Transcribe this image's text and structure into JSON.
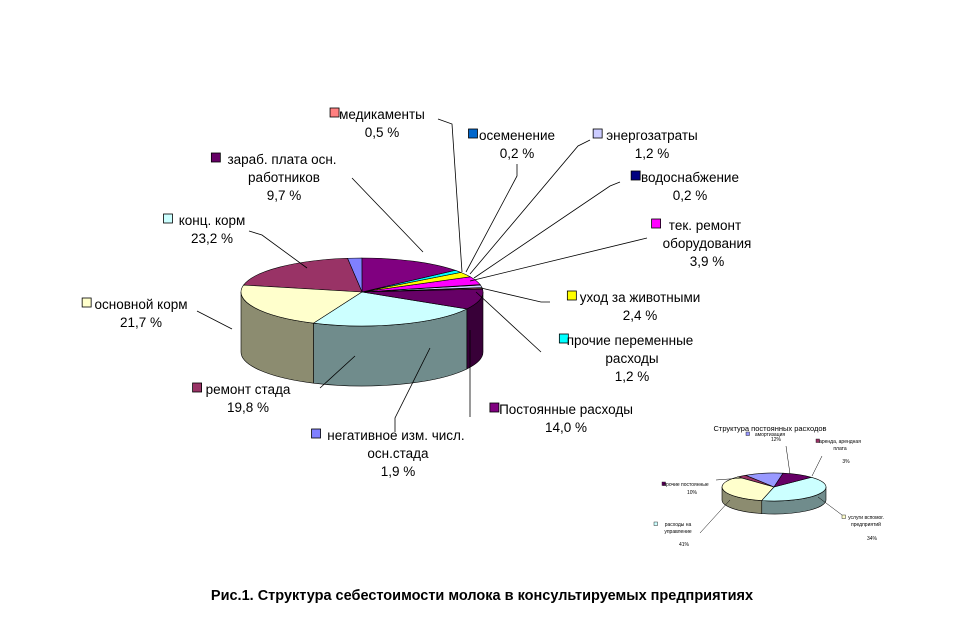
{
  "chart_data": [
    {
      "type": "pie",
      "series": [
        {
          "name": "медикаменты",
          "value": 0.5,
          "label": "0,5 %",
          "color": "#ff8080"
        },
        {
          "name": "осеменение",
          "value": 0.2,
          "label": "0,2 %",
          "color": "#0066cc"
        },
        {
          "name": "энергозатраты",
          "value": 1.2,
          "label": "1,2 %",
          "color": "#ccccff"
        },
        {
          "name": "водоснабжение",
          "value": 0.2,
          "label": "0,2 %",
          "color": "#000080"
        },
        {
          "name": "тек. ремонт оборудования",
          "label_lines": [
            "тек. ремонт",
            "оборудования"
          ],
          "value": 3.9,
          "label": "3,9 %",
          "color": "#ff00ff"
        },
        {
          "name": "уход за животными",
          "value": 2.4,
          "label": "2,4 %",
          "color": "#ffff00"
        },
        {
          "name": "прочие переменные расходы",
          "label_lines": [
            "прочие переменные",
            "расходы"
          ],
          "value": 1.2,
          "label": "1,2 %",
          "color": "#00ffff"
        },
        {
          "name": "Постоянные расходы",
          "value": 14.0,
          "label": "14,0 %",
          "color": "#800080"
        },
        {
          "name": "негативное изм. числ. осн.стада",
          "label_lines": [
            "негативное изм. числ.",
            "осн.стада"
          ],
          "value": 1.9,
          "label": "1,9 %",
          "color": "#8080ff"
        },
        {
          "name": "ремонт стада",
          "value": 19.8,
          "label": "19,8 %",
          "color": "#993366"
        },
        {
          "name": "основной корм",
          "value": 21.7,
          "label": "21,7 %",
          "color": "#ffffcc"
        },
        {
          "name": "конц. корм",
          "value": 23.2,
          "label": "23,2 %",
          "color": "#ccffff"
        },
        {
          "name": "зараб. плата осн. работников",
          "label_lines": [
            "зараб. плата осн.",
            "работников"
          ],
          "value": 9.7,
          "label": "9,7 %",
          "color": "#660066"
        }
      ]
    },
    {
      "type": "pie",
      "title": "Структура постоянных расходов",
      "series": [
        {
          "name": "амортизация",
          "value": 12,
          "label": "12%",
          "color": "#9999ff"
        },
        {
          "name": "аренда, арендная плата",
          "value": 3,
          "label": "3%",
          "color": "#993366"
        },
        {
          "name": "услуги вспомог. предприятий",
          "value": 34,
          "label": "34%",
          "color": "#ffffcc"
        },
        {
          "name": "расходы на управление",
          "value": 41,
          "label": "41%",
          "color": "#ccffff"
        },
        {
          "name": "прочие постоянные",
          "value": 10,
          "label": "10%",
          "color": "#660066"
        }
      ]
    }
  ],
  "caption": "Рис.1. Структура себестоимости молока в консультируемых предприятиях"
}
